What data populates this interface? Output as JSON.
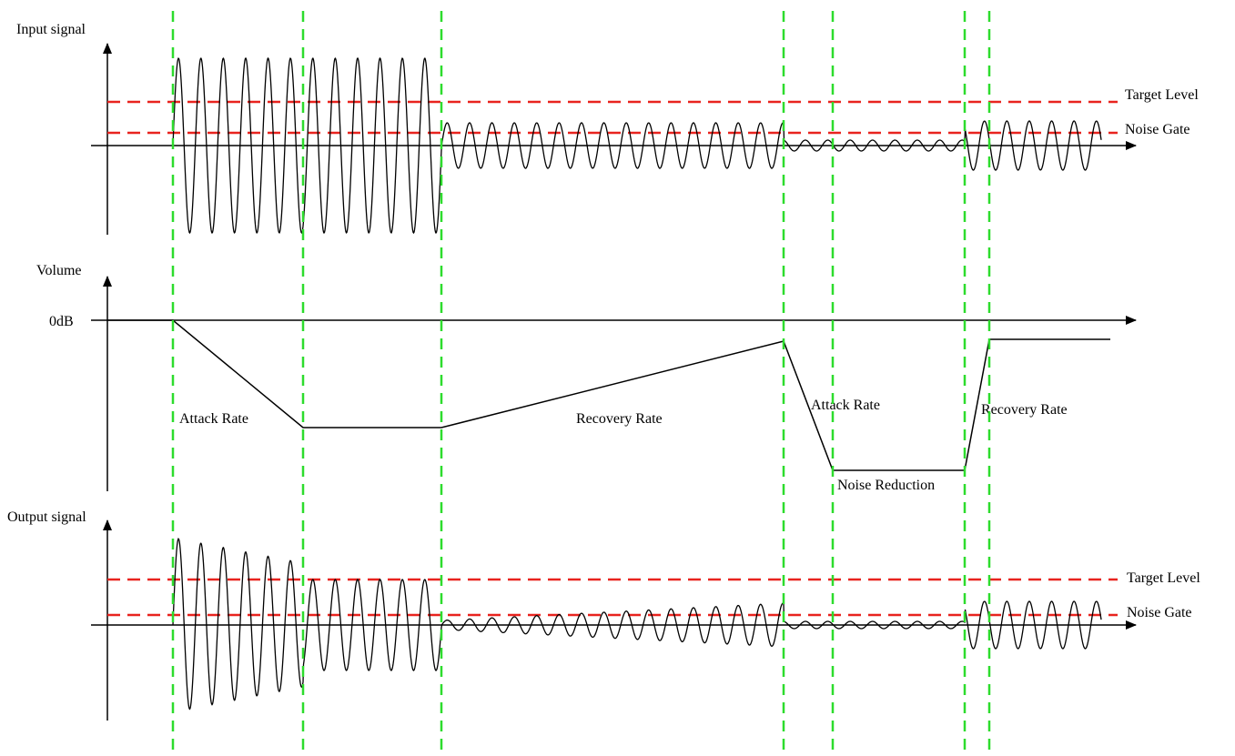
{
  "panels": {
    "input": {
      "axis_label": "Input signal",
      "target_label": "Target Level",
      "gate_label": "Noise Gate"
    },
    "volume": {
      "axis_label": "Volume",
      "zero_label": "0dB"
    },
    "output": {
      "axis_label": "Output signal",
      "target_label": "Target Level",
      "gate_label": "Noise Gate"
    }
  },
  "annotations": {
    "attack_rate_1": "Attack Rate",
    "recovery_rate_1": "Recovery Rate",
    "attack_rate_2": "Attack Rate",
    "recovery_rate_2": "Recovery Rate",
    "noise_reduction": "Noise Reduction"
  },
  "colors": {
    "signal": "#000000",
    "threshold_lines": "#e8231e",
    "event_markers": "#2ddc2d"
  }
}
